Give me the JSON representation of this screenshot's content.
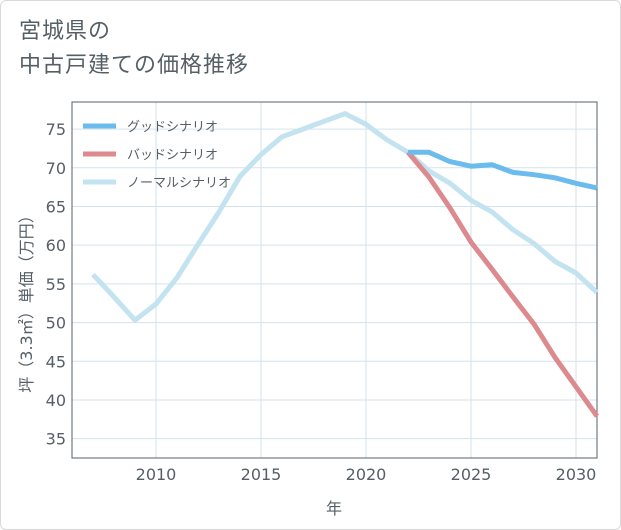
{
  "title": {
    "line1": "宮城県の",
    "line2": "中古戸建ての価格推移"
  },
  "chart_data": {
    "type": "line",
    "xlabel": "年",
    "ylabel": "坪（3.3㎡）単価（万円）",
    "xlim": [
      2006,
      2031
    ],
    "ylim": [
      32.5,
      78.5
    ],
    "xticks": [
      "2010",
      "2015",
      "2020",
      "2025",
      "2030"
    ],
    "yticks": [
      "35",
      "40",
      "45",
      "50",
      "55",
      "60",
      "65",
      "70",
      "75"
    ],
    "grid": true,
    "legend_position": "top-left",
    "series": [
      {
        "name": "グッドシナリオ",
        "color": "#6bbcec",
        "x": [
          2022,
          2023,
          2024,
          2025,
          2026,
          2027,
          2028,
          2029,
          2030,
          2031
        ],
        "values": [
          72.0,
          72.0,
          70.8,
          70.2,
          70.4,
          69.4,
          69.1,
          68.7,
          68.0,
          67.4
        ]
      },
      {
        "name": "バッドシナリオ",
        "color": "#dd8a8f",
        "x": [
          2022,
          2023,
          2024,
          2025,
          2026,
          2027,
          2028,
          2029,
          2030,
          2031
        ],
        "values": [
          72.0,
          68.8,
          64.8,
          60.4,
          56.9,
          53.3,
          49.8,
          45.5,
          41.7,
          37.9
        ]
      },
      {
        "name": "ノーマルシナリオ",
        "color": "#c2e3ef",
        "x": [
          2007,
          2008,
          2009,
          2010,
          2011,
          2012,
          2013,
          2014,
          2015,
          2016,
          2017,
          2018,
          2019,
          2020,
          2021,
          2022,
          2023,
          2024,
          2025,
          2026,
          2027,
          2028,
          2029,
          2030,
          2031
        ],
        "values": [
          56.2,
          53.3,
          50.3,
          52.4,
          55.8,
          60.1,
          64.3,
          68.9,
          71.7,
          74.0,
          75.0,
          76.0,
          77.0,
          75.6,
          73.6,
          72.0,
          69.6,
          68.0,
          65.8,
          64.3,
          62.0,
          60.2,
          57.9,
          56.4,
          53.9
        ]
      }
    ]
  }
}
